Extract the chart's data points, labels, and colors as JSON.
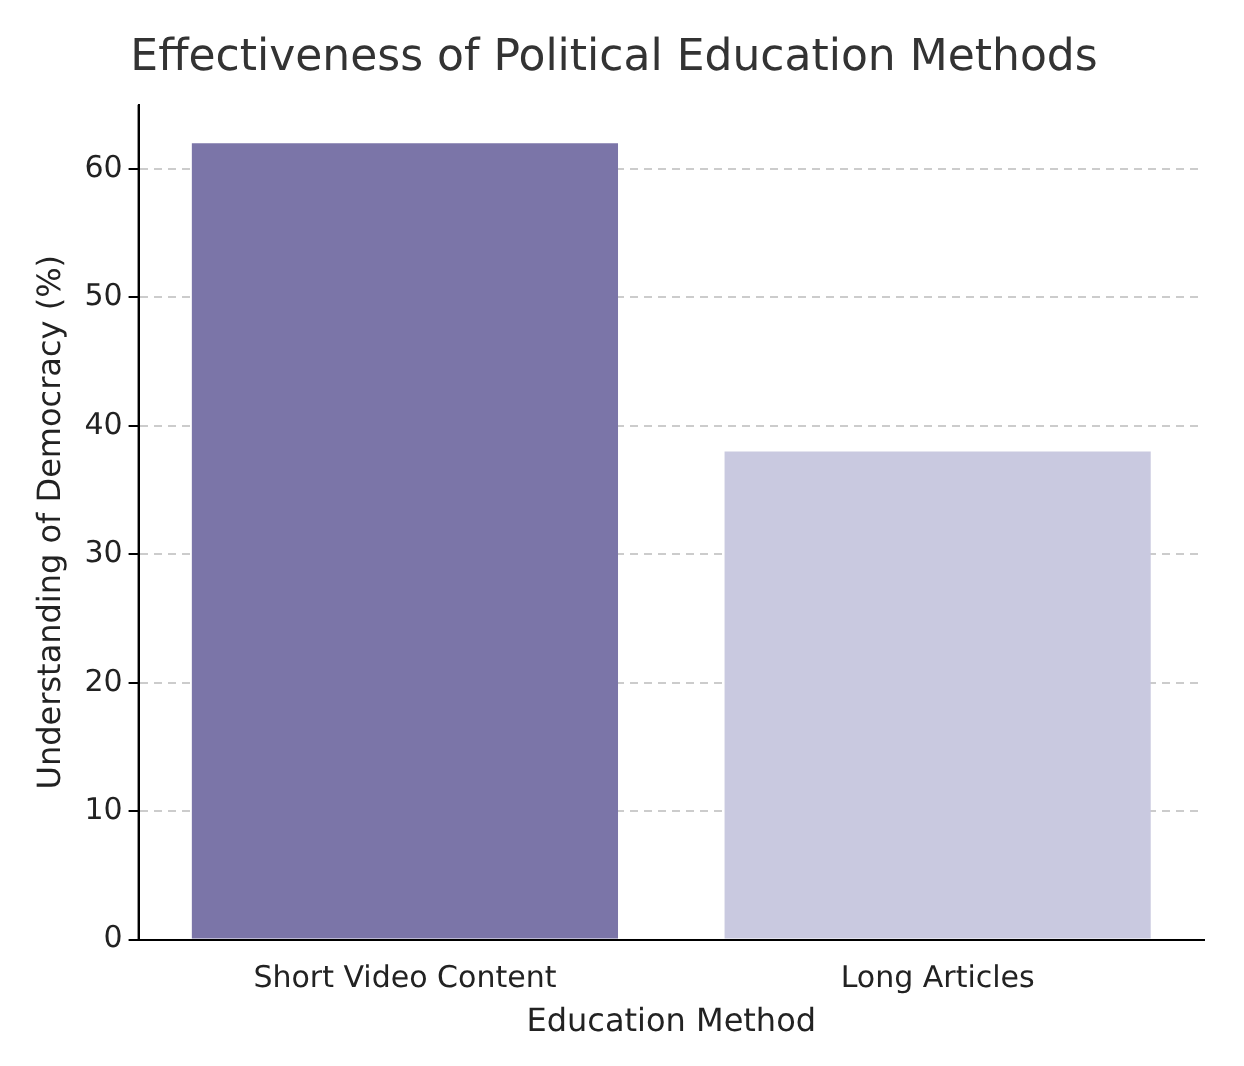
{
  "chart_data": {
    "type": "bar",
    "title": "Effectiveness of Political Education Methods",
    "xlabel": "Education Method",
    "ylabel": "Understanding of Democracy (%)",
    "categories": [
      "Short Video Content",
      "Long Articles"
    ],
    "values": [
      62,
      38
    ],
    "colors": [
      "#7b75a8",
      "#c9c9e0"
    ],
    "ylim": [
      0,
      65
    ],
    "yticks": [
      0,
      10,
      20,
      30,
      40,
      50,
      60
    ],
    "grid": "y",
    "legend": false
  }
}
